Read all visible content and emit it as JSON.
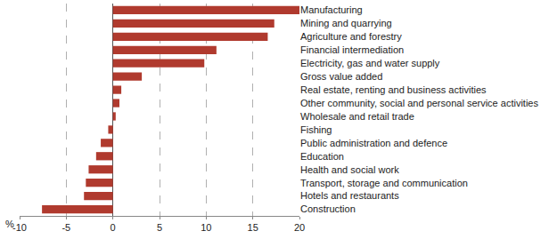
{
  "chart_data": {
    "type": "bar",
    "orientation": "horizontal",
    "categories": [
      "Manufacturing",
      "Mining and quarrying",
      "Agriculture and forestry",
      "Financial intermediation",
      "Electricity, gas and water supply",
      "Gross value added",
      "Real estate, renting and business activities",
      "Other community, social and personal service activities",
      "Wholesale and retail trade",
      "Fishing",
      "Public administration and defence",
      "Education",
      "Health and social work",
      "Transport, storage and communication",
      "Hotels and restaurants",
      "Construction"
    ],
    "values": [
      20.0,
      17.3,
      16.6,
      11.1,
      9.8,
      3.1,
      0.9,
      0.7,
      0.3,
      -0.5,
      -1.3,
      -1.8,
      -2.6,
      -2.9,
      -3.1,
      -7.6
    ],
    "color": "#b03a2e",
    "xlabel": "%",
    "xlim": [
      -10,
      20
    ],
    "xticks": [
      -10,
      -5,
      0,
      5,
      10,
      15,
      20
    ],
    "grid": true
  }
}
